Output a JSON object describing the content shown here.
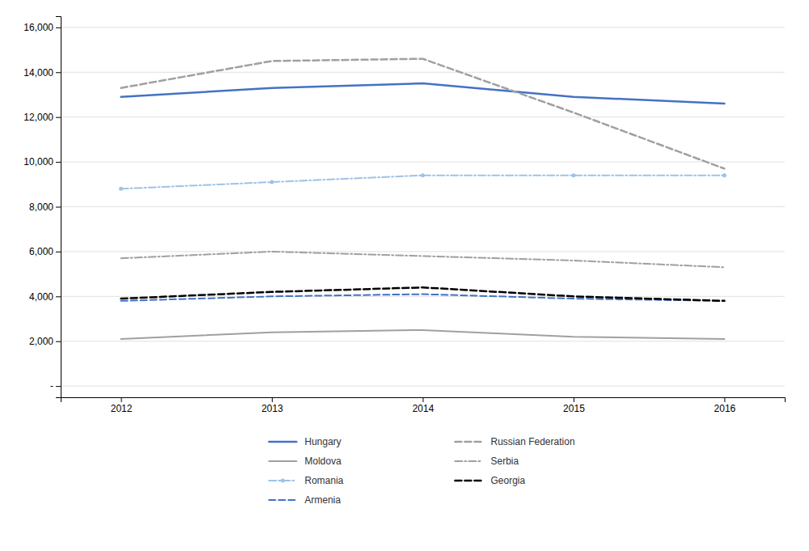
{
  "chart_data": {
    "type": "line",
    "x": [
      2012,
      2013,
      2014,
      2015,
      2016
    ],
    "xlim": [
      2011.6,
      2016.4
    ],
    "xticks": [
      2012,
      2013,
      2014,
      2015,
      2016
    ],
    "ylim": [
      -500,
      16500
    ],
    "yticks": [
      {
        "value": 0,
        "label": "-"
      },
      {
        "value": 2000,
        "label": "2,000"
      },
      {
        "value": 4000,
        "label": "4,000"
      },
      {
        "value": 6000,
        "label": "6,000"
      },
      {
        "value": 8000,
        "label": "8,000"
      },
      {
        "value": 10000,
        "label": "10,000"
      },
      {
        "value": 12000,
        "label": "12,000"
      },
      {
        "value": 14000,
        "label": "14,000"
      },
      {
        "value": 16000,
        "label": "16,000"
      }
    ],
    "grid": "y",
    "legend": "bottom",
    "series": [
      {
        "name": "Hungary",
        "color": "#4472C4",
        "line_style": "solid",
        "values": [
          12900,
          13300,
          13500,
          12900,
          12600
        ]
      },
      {
        "name": "Moldova",
        "color": "#A0A0A0",
        "line_style": "solid",
        "values": [
          2100,
          2400,
          2500,
          2200,
          2100
        ]
      },
      {
        "name": "Romania",
        "color": "#9DC3E6",
        "line_style": "dashdot",
        "marker": "point",
        "values": [
          8800,
          9100,
          9400,
          9400,
          9400
        ]
      },
      {
        "name": "Armenia",
        "color": "#4472C4",
        "line_style": "dashed",
        "values": [
          3800,
          4000,
          4100,
          3900,
          3800
        ]
      },
      {
        "name": "Russian Federation",
        "color": "#A0A0A0",
        "line_style": "dashed",
        "values": [
          13300,
          14500,
          14600,
          12200,
          9700
        ]
      },
      {
        "name": "Serbia",
        "color": "#A0A0A0",
        "line_style": "dashdot",
        "values": [
          5700,
          6000,
          5800,
          5600,
          5300
        ]
      },
      {
        "name": "Georgia",
        "color": "#000000",
        "line_style": "dashed",
        "values": [
          3900,
          4200,
          4400,
          4000,
          3800
        ]
      }
    ]
  }
}
